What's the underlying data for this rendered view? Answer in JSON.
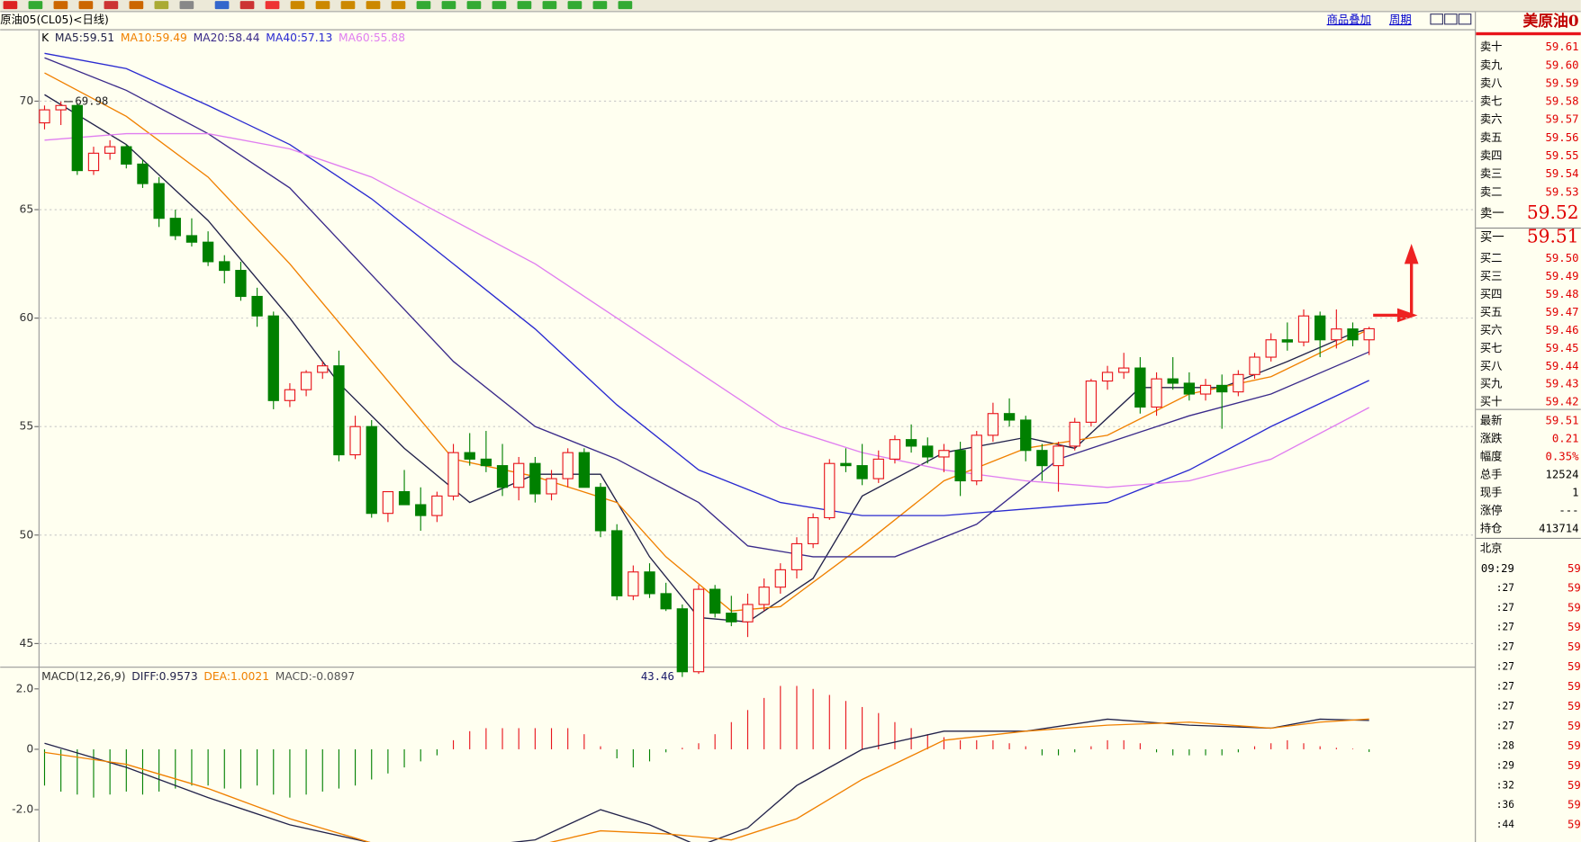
{
  "header": {
    "symbol": "原油05(CL05)<日线)",
    "links": [
      "商品叠加",
      "周期"
    ]
  },
  "chart_data": [
    {
      "type": "candlestick",
      "candle_label": "K",
      "ylim": [
        43.93,
        73.27
      ],
      "yticks": [
        45,
        50,
        55,
        60,
        65,
        70
      ],
      "grid": true,
      "up_color": "#e8141b",
      "down_color": "#008000",
      "candles": [
        [
          69.0,
          69.8,
          68.7,
          69.6
        ],
        [
          69.6,
          69.98,
          68.9,
          69.8
        ],
        [
          69.8,
          69.9,
          66.6,
          66.8
        ],
        [
          66.8,
          67.9,
          66.6,
          67.6
        ],
        [
          67.6,
          68.2,
          67.3,
          67.9
        ],
        [
          67.9,
          68.0,
          66.9,
          67.1
        ],
        [
          67.1,
          67.3,
          66.0,
          66.2
        ],
        [
          66.2,
          66.5,
          64.2,
          64.6
        ],
        [
          64.6,
          65.0,
          63.6,
          63.8
        ],
        [
          63.8,
          64.6,
          63.3,
          63.5
        ],
        [
          63.5,
          64.0,
          62.4,
          62.6
        ],
        [
          62.6,
          62.9,
          61.6,
          62.2
        ],
        [
          62.2,
          62.6,
          60.8,
          61.0
        ],
        [
          61.0,
          61.4,
          59.6,
          60.1
        ],
        [
          60.1,
          60.3,
          55.8,
          56.2
        ],
        [
          56.2,
          57.0,
          55.9,
          56.7
        ],
        [
          56.7,
          57.6,
          56.4,
          57.5
        ],
        [
          57.5,
          58.0,
          57.2,
          57.8
        ],
        [
          57.8,
          58.5,
          53.4,
          53.7
        ],
        [
          53.7,
          55.5,
          53.5,
          55.0
        ],
        [
          55.0,
          55.3,
          50.8,
          51.0
        ],
        [
          51.0,
          52.0,
          50.6,
          52.0
        ],
        [
          52.0,
          53.0,
          51.4,
          51.4
        ],
        [
          51.4,
          52.2,
          50.2,
          50.9
        ],
        [
          50.9,
          52.0,
          50.6,
          51.8
        ],
        [
          51.8,
          54.2,
          51.6,
          53.8
        ],
        [
          53.8,
          54.7,
          53.2,
          53.5
        ],
        [
          53.5,
          54.8,
          52.9,
          53.2
        ],
        [
          53.2,
          54.2,
          51.8,
          52.2
        ],
        [
          52.2,
          53.6,
          51.6,
          53.3
        ],
        [
          53.3,
          53.6,
          51.5,
          51.9
        ],
        [
          51.9,
          53.0,
          51.6,
          52.6
        ],
        [
          52.6,
          54.0,
          52.2,
          53.8
        ],
        [
          53.8,
          54.0,
          52.2,
          52.2
        ],
        [
          52.2,
          52.4,
          49.9,
          50.2
        ],
        [
          50.2,
          50.5,
          47.0,
          47.2
        ],
        [
          47.2,
          48.6,
          47.0,
          48.3
        ],
        [
          48.3,
          48.7,
          47.1,
          47.3
        ],
        [
          47.3,
          47.8,
          46.5,
          46.6
        ],
        [
          46.6,
          46.8,
          43.46,
          43.7
        ],
        [
          43.7,
          47.7,
          43.6,
          47.5
        ],
        [
          47.5,
          47.7,
          46.2,
          46.4
        ],
        [
          46.4,
          47.2,
          45.8,
          46.0
        ],
        [
          46.0,
          47.3,
          45.3,
          46.8
        ],
        [
          46.8,
          48.0,
          46.5,
          47.6
        ],
        [
          47.6,
          48.7,
          47.3,
          48.4
        ],
        [
          48.4,
          49.9,
          48.0,
          49.6
        ],
        [
          49.6,
          51.0,
          49.4,
          50.8
        ],
        [
          50.8,
          53.5,
          50.7,
          53.3
        ],
        [
          53.3,
          54.0,
          52.9,
          53.2
        ],
        [
          53.2,
          54.2,
          52.3,
          52.6
        ],
        [
          52.6,
          53.9,
          52.4,
          53.5
        ],
        [
          53.5,
          54.6,
          53.3,
          54.4
        ],
        [
          54.4,
          55.1,
          53.8,
          54.1
        ],
        [
          54.1,
          54.5,
          53.3,
          53.6
        ],
        [
          53.6,
          54.2,
          52.9,
          53.9
        ],
        [
          53.9,
          54.3,
          51.8,
          52.5
        ],
        [
          52.5,
          54.8,
          52.3,
          54.6
        ],
        [
          54.6,
          56.1,
          54.3,
          55.6
        ],
        [
          55.6,
          56.3,
          55.0,
          55.3
        ],
        [
          55.3,
          55.5,
          53.4,
          53.9
        ],
        [
          53.9,
          54.2,
          52.5,
          53.2
        ],
        [
          53.2,
          54.3,
          52.0,
          54.1
        ],
        [
          54.1,
          55.4,
          53.9,
          55.2
        ],
        [
          55.2,
          57.2,
          55.0,
          57.1
        ],
        [
          57.1,
          57.8,
          56.7,
          57.5
        ],
        [
          57.5,
          58.4,
          57.2,
          57.7
        ],
        [
          57.7,
          58.2,
          55.6,
          55.9
        ],
        [
          55.9,
          57.5,
          55.5,
          57.2
        ],
        [
          57.2,
          58.2,
          56.7,
          57.0
        ],
        [
          57.0,
          57.5,
          56.2,
          56.5
        ],
        [
          56.5,
          57.2,
          56.2,
          56.9
        ],
        [
          56.9,
          57.4,
          54.9,
          56.6
        ],
        [
          56.6,
          57.6,
          56.4,
          57.4
        ],
        [
          57.4,
          58.4,
          57.2,
          58.2
        ],
        [
          58.2,
          59.3,
          58.0,
          59.0
        ],
        [
          59.0,
          59.8,
          58.5,
          58.9
        ],
        [
          58.9,
          60.4,
          58.7,
          60.1
        ],
        [
          60.1,
          60.3,
          58.2,
          59.0
        ],
        [
          59.0,
          60.4,
          58.6,
          59.5
        ],
        [
          59.5,
          59.8,
          58.7,
          59.0
        ],
        [
          59.0,
          59.6,
          58.3,
          59.51
        ]
      ],
      "series": [
        {
          "name": "MA5:59.51",
          "color": "#22224a",
          "x": [
            0,
            5,
            10,
            15,
            18,
            22,
            26,
            30,
            34,
            37,
            40,
            43,
            47,
            50,
            55,
            60,
            63,
            67,
            72,
            76,
            80,
            81
          ],
          "values": [
            70.3,
            68.0,
            64.5,
            60.0,
            57.0,
            54.0,
            51.5,
            52.8,
            52.8,
            49.0,
            46.2,
            46.0,
            48.0,
            51.8,
            53.8,
            54.5,
            54.0,
            56.8,
            56.8,
            58.0,
            59.3,
            59.51
          ]
        },
        {
          "name": "MA10:59.49",
          "color": "#f08000",
          "x": [
            0,
            5,
            10,
            15,
            20,
            25,
            30,
            35,
            38,
            42,
            45,
            50,
            55,
            60,
            65,
            70,
            75,
            81
          ],
          "values": [
            71.3,
            69.3,
            66.5,
            62.5,
            58.0,
            53.5,
            52.7,
            51.5,
            49.0,
            46.5,
            46.7,
            49.5,
            52.5,
            54.0,
            54.6,
            56.5,
            57.3,
            59.49
          ]
        },
        {
          "name": "MA20:58.44",
          "color": "#3a2a8a",
          "x": [
            0,
            5,
            10,
            15,
            20,
            25,
            30,
            35,
            40,
            43,
            47,
            52,
            57,
            62,
            66,
            70,
            75,
            81
          ],
          "values": [
            72.0,
            70.5,
            68.5,
            66.0,
            62.0,
            58.0,
            55.0,
            53.5,
            51.5,
            49.5,
            49.0,
            49.0,
            50.5,
            53.5,
            54.5,
            55.5,
            56.5,
            58.44
          ]
        },
        {
          "name": "MA40:57.13",
          "color": "#2a2ad0",
          "x": [
            0,
            5,
            10,
            15,
            20,
            25,
            30,
            35,
            40,
            45,
            50,
            55,
            60,
            65,
            70,
            75,
            81
          ],
          "values": [
            72.2,
            71.5,
            69.8,
            68.0,
            65.5,
            62.5,
            59.5,
            56.0,
            53.0,
            51.5,
            50.9,
            50.9,
            51.2,
            51.5,
            53.0,
            55.0,
            57.13
          ]
        },
        {
          "name": "MA60:55.88",
          "color": "#e07ef0",
          "x": [
            0,
            5,
            10,
            15,
            20,
            25,
            30,
            35,
            40,
            45,
            50,
            55,
            60,
            65,
            70,
            75,
            81
          ],
          "values": [
            68.2,
            68.5,
            68.5,
            67.8,
            66.5,
            64.5,
            62.5,
            60.0,
            57.5,
            55.0,
            53.8,
            53.0,
            52.5,
            52.2,
            52.5,
            53.5,
            55.88
          ]
        }
      ],
      "high_label": 69.98,
      "low_label": 43.46
    },
    {
      "type": "macd",
      "title": "MACD(12,26,9)",
      "ylim": [
        -3.07,
        2.7
      ],
      "yticks": [
        {
          "value": 2,
          "label": "2.0"
        },
        0,
        {
          "value": -2,
          "label": "-2.0"
        }
      ],
      "grid": false,
      "histogram": {
        "name": "MACD:-0.0897",
        "up_color": "#e8141b",
        "down_color": "#008000",
        "values": [
          -1.2,
          -1.4,
          -1.5,
          -1.6,
          -1.5,
          -1.4,
          -1.5,
          -1.4,
          -1.3,
          -1.2,
          -1.2,
          -1.3,
          -1.3,
          -1.2,
          -1.5,
          -1.6,
          -1.5,
          -1.4,
          -1.3,
          -1.2,
          -1.0,
          -0.8,
          -0.6,
          -0.4,
          -0.2,
          0.3,
          0.6,
          0.7,
          0.7,
          0.7,
          0.7,
          0.7,
          0.7,
          0.5,
          0.1,
          -0.3,
          -0.6,
          -0.4,
          -0.1,
          0.05,
          0.2,
          0.5,
          0.9,
          1.3,
          1.7,
          2.1,
          2.1,
          2.0,
          1.8,
          1.6,
          1.4,
          1.2,
          0.9,
          0.7,
          0.5,
          0.4,
          0.3,
          0.3,
          0.3,
          0.2,
          0.1,
          -0.2,
          -0.2,
          -0.1,
          0.1,
          0.3,
          0.3,
          0.2,
          -0.1,
          -0.2,
          -0.2,
          -0.2,
          -0.2,
          -0.1,
          0.1,
          0.2,
          0.3,
          0.2,
          0.1,
          0.05,
          0.02,
          -0.0897
        ]
      },
      "series": [
        {
          "name": "DIFF:0.9573",
          "color": "#22224a",
          "x": [
            0,
            5,
            10,
            15,
            20,
            25,
            30,
            34,
            37,
            40,
            43,
            46,
            50,
            55,
            60,
            65,
            70,
            75,
            78,
            81
          ],
          "values": [
            0.2,
            -0.6,
            -1.6,
            -2.5,
            -3.1,
            -3.3,
            -3.0,
            -2.0,
            -2.5,
            -3.2,
            -2.6,
            -1.2,
            0,
            0.6,
            0.6,
            1.0,
            0.8,
            0.7,
            1.0,
            0.9573
          ]
        },
        {
          "name": "DEA:1.0021",
          "color": "#f08000",
          "x": [
            0,
            5,
            10,
            15,
            20,
            25,
            30,
            34,
            38,
            42,
            46,
            50,
            55,
            60,
            65,
            70,
            75,
            78,
            81
          ],
          "values": [
            -0.1,
            -0.5,
            -1.3,
            -2.3,
            -3.1,
            -3.4,
            -3.2,
            -2.7,
            -2.8,
            -3.0,
            -2.3,
            -1.0,
            0.3,
            0.6,
            0.8,
            0.9,
            0.7,
            0.9,
            1.0021
          ]
        }
      ]
    }
  ],
  "side_panel": {
    "title": "美原油0",
    "asks": [
      {
        "label": "卖十",
        "price": "59.61"
      },
      {
        "label": "卖九",
        "price": "59.60"
      },
      {
        "label": "卖八",
        "price": "59.59"
      },
      {
        "label": "卖七",
        "price": "59.58"
      },
      {
        "label": "卖六",
        "price": "59.57"
      },
      {
        "label": "卖五",
        "price": "59.56"
      },
      {
        "label": "卖四",
        "price": "59.55"
      },
      {
        "label": "卖三",
        "price": "59.54"
      },
      {
        "label": "卖二",
        "price": "59.53"
      },
      {
        "label": "卖一",
        "price": "59.52"
      }
    ],
    "bids": [
      {
        "label": "买一",
        "price": "59.51"
      },
      {
        "label": "买二",
        "price": "59.50"
      },
      {
        "label": "买三",
        "price": "59.49"
      },
      {
        "label": "买四",
        "price": "59.48"
      },
      {
        "label": "买五",
        "price": "59.47"
      },
      {
        "label": "买六",
        "price": "59.46"
      },
      {
        "label": "买七",
        "price": "59.45"
      },
      {
        "label": "买八",
        "price": "59.44"
      },
      {
        "label": "买九",
        "price": "59.43"
      },
      {
        "label": "买十",
        "price": "59.42"
      }
    ],
    "stats": [
      {
        "label": "最新",
        "value": "59.51"
      },
      {
        "label": "涨跌",
        "value": "0.21"
      },
      {
        "label": "幅度",
        "value": "0.35%"
      },
      {
        "label": "总手",
        "value": "12524"
      },
      {
        "label": "现手",
        "value": "1"
      },
      {
        "label": "涨停",
        "value": "---"
      },
      {
        "label": "持仓",
        "value": "413714"
      }
    ],
    "time_header": "北京",
    "trades": [
      {
        "time": "09:29",
        "price": "59"
      },
      {
        "time": ":27",
        "price": "59"
      },
      {
        "time": ":27",
        "price": "59"
      },
      {
        "time": ":27",
        "price": "59"
      },
      {
        "time": ":27",
        "price": "59"
      },
      {
        "time": ":27",
        "price": "59"
      },
      {
        "time": ":27",
        "price": "59"
      },
      {
        "time": ":27",
        "price": "59"
      },
      {
        "time": ":27",
        "price": "59"
      },
      {
        "time": ":28",
        "price": "59"
      },
      {
        "time": ":29",
        "price": "59"
      },
      {
        "time": ":32",
        "price": "59"
      },
      {
        "time": ":36",
        "price": "59"
      },
      {
        "time": ":44",
        "price": "59"
      }
    ]
  }
}
